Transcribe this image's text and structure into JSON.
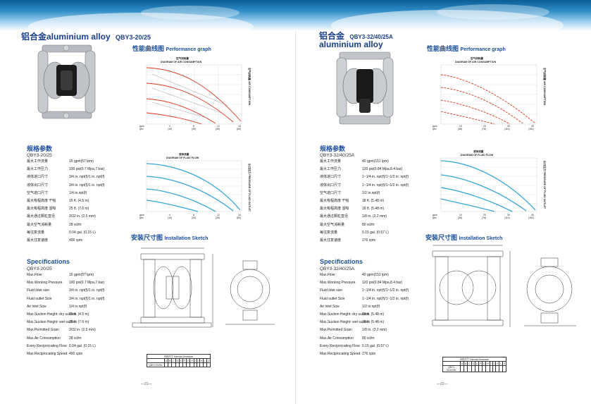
{
  "left": {
    "title_line1": "铝合金aluminium alloy",
    "title_model": "QBY3-20/25",
    "perf_cn": "性能曲线图",
    "perf_en": "Performance graph",
    "air_chart": {
      "title_cn": "空气消耗量",
      "title_en": "DIAGRAM OF AIR CONSUMPTION"
    },
    "flow_chart": {
      "title_cn": "液体流量",
      "title_en": "DIAGRAM OF FLUID FLOW"
    },
    "spec_cn": "规格参数",
    "spec_model": "QBY3-20/25",
    "spec_rows_cn": [
      {
        "k": "最大工作流量",
        "v": "15 gpm(57 lpm)"
      },
      {
        "k": "最大工作压力",
        "v": "100 psi(0.7 Mpa,7 bar)"
      },
      {
        "k": "液体进口尺寸",
        "v": "3/4 in. npt(f)/1 in. npt(f)"
      },
      {
        "k": "液体出口尺寸",
        "v": "3/4 in. npt(f)/1 in. npt(f)"
      },
      {
        "k": "空气进口尺寸",
        "v": "1/4 in.npt(f)"
      },
      {
        "k": "最大吸程高度 干吸",
        "v": "15 ft. (4.5 m)"
      },
      {
        "k": "最大吸程高度 湿吸",
        "v": "25 ft. (7.6 m)"
      },
      {
        "k": "最大通过颗粒直径",
        "v": "3/32 in. (2.5 mm)"
      },
      {
        "k": "最大空气消耗量",
        "v": "28 scfm"
      },
      {
        "k": "每往复流量",
        "v": "0.04 gal. (0.15 L)"
      },
      {
        "k": "最大往复速度",
        "v": "400 cpm"
      }
    ],
    "install_cn": "安装尺寸图",
    "install_en": "Installation Sketch",
    "specs_en_title": "Specifications",
    "specs_en_model": "QBY3-20/25",
    "spec_rows_en": [
      {
        "k": "Max.Flow",
        "v": "15 gpm(57 lpm)"
      },
      {
        "k": "Max.Working Pressure",
        "v": "100 psi(0.7 Mpa,7 bar)"
      },
      {
        "k": "Fluid Inlet size",
        "v": "3/4 in. npt(f)/1 in. npt(f)"
      },
      {
        "k": "Fluid outlet Size",
        "v": "3/4 in. npt(f)/1 in. npt(f)"
      },
      {
        "k": "Air inlet Size",
        "v": "1/4 in.npt(f)"
      },
      {
        "k": "Max.Suction Height: dry suction",
        "v": "15 ft. (4.5 m)"
      },
      {
        "k": "Max.Suction Height: wet suction",
        "v": "25 ft. (7.6 m)"
      },
      {
        "k": "Max.Permitted Grain",
        "v": "3/32 in. (2.5 mm)"
      },
      {
        "k": "Max.Air Consumption",
        "v": "28 scfm"
      },
      {
        "k": "Every Reciprocating Flow",
        "v": "0.04 gal. (0.15 L)"
      },
      {
        "k": "Max.Reciprocating Speed",
        "v": "400 cpm"
      }
    ],
    "dim_table_title": "外形尺寸 External Dimension",
    "dim_model": "QBY3-20/25L",
    "page_num": "—21—"
  },
  "right": {
    "title_line1": "铝合金",
    "title_model": "QBY3-32/40/25A",
    "title_line2": "aluminium alloy",
    "perf_cn": "性能曲线图",
    "perf_en": "Performance graph",
    "air_chart": {
      "title_cn": "空气消耗量",
      "title_en": "DIAGRAM OF AIR CONSUMPTION"
    },
    "flow_chart": {
      "title_cn": "液体流量",
      "title_en": "DIAGRAM OF FLUID FLOW"
    },
    "spec_cn": "规格参数",
    "spec_model": "QBY3-32/40/25A",
    "spec_rows_cn": [
      {
        "k": "最大工作流量",
        "v": "40 gpm(151 lpm)"
      },
      {
        "k": "最大工作压力",
        "v": "120 psi(0.84 Mpa,8.4 bar)"
      },
      {
        "k": "液体进口尺寸",
        "v": "1~1/4 in. npt(f)/1~1/2 in. npt(f)"
      },
      {
        "k": "液体出口尺寸",
        "v": "1~1/4 in. npt(f)/1~1/2 in. npt(f)"
      },
      {
        "k": "空气进口尺寸",
        "v": "1/2 in.npt(f)"
      },
      {
        "k": "最大吸程高度 干吸",
        "v": "18 ft. (5.48 m)"
      },
      {
        "k": "最大吸程高度 湿吸",
        "v": "18 ft. (5.48 m)"
      },
      {
        "k": "最大通过颗粒直径",
        "v": "1/8 in. (3.2 mm)"
      },
      {
        "k": "最大空气消耗量",
        "v": "80 scfm"
      },
      {
        "k": "每往复流量",
        "v": "0.15 gal. (0.57 L)"
      },
      {
        "k": "最大往复速度",
        "v": "276 cpm"
      }
    ],
    "install_cn": "安装尺寸图",
    "install_en": "Installation Sketch",
    "specs_en_title": "Specifications",
    "specs_en_model": "QBY3-32/40/25A",
    "spec_rows_en": [
      {
        "k": "Max.Flow",
        "v": "40 gpm(151 lpm)"
      },
      {
        "k": "Max.Working Pressure",
        "v": "120 psi(0.84 Mpa,8.4 bar)"
      },
      {
        "k": "Fluid Inlet size",
        "v": "1~1/4 in. npt(f)/1~1/2 in. npt(f)"
      },
      {
        "k": "Fluid outlet Size",
        "v": "1~1/4 in. npt(f)/1~1/2 in. npt(f)"
      },
      {
        "k": "Air inlet Size",
        "v": "1/2 in.npt(f)"
      },
      {
        "k": "Max.Suction Height: dry suction",
        "v": "18 ft. (5.48 m)"
      },
      {
        "k": "Max.Suction Height: wet suction",
        "v": "18 ft. (5.48 m)"
      },
      {
        "k": "Max.Permitted Grain",
        "v": "1/8 in. (3.2 mm)"
      },
      {
        "k": "Max.Air Consumption",
        "v": "80 scfm"
      },
      {
        "k": "Every Reciprocating Flow",
        "v": "0.15 gal. (0.57 L)"
      },
      {
        "k": "Max.Reciprocating Speed",
        "v": "276 cpm"
      }
    ],
    "dim_table_title": "外形尺寸 External Dimension",
    "dim_model": "QBY3-32/40/25L",
    "page_num": "—22—"
  },
  "colors": {
    "heading": "#1b4f9c",
    "curve_red": "#d9381e",
    "curve_blue": "#3aa7d8",
    "banner": "#2f8dc7"
  }
}
